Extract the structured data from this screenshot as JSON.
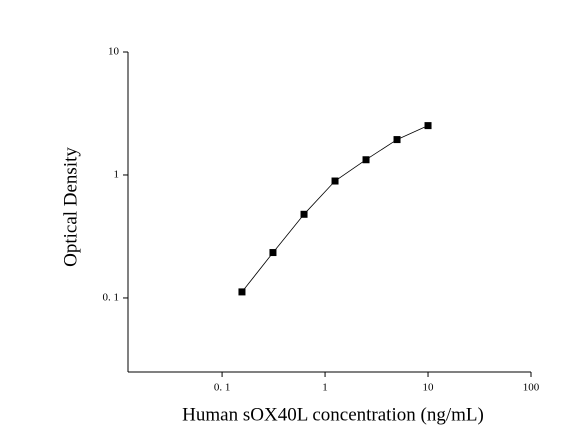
{
  "chart_data": {
    "type": "scatter",
    "x_label": "Human sOX40L concentration (ng/mL)",
    "y_label": "Optical Density",
    "x": [
      0.156,
      0.312,
      0.625,
      1.25,
      2.5,
      5,
      10
    ],
    "values": [
      0.112,
      0.234,
      0.479,
      0.893,
      1.33,
      1.94,
      2.52
    ],
    "color": "#000000",
    "xscale": "log",
    "yscale": "log",
    "xlim": [
      0.0122,
      100
    ],
    "ylim": [
      0.025,
      10
    ],
    "xticks": [
      {
        "value": 0.1,
        "label": "0. 1"
      },
      1,
      10,
      100
    ],
    "yticks": [
      {
        "value": 0.1,
        "label": "0. 1"
      },
      1,
      10
    ],
    "fit_line": true
  }
}
